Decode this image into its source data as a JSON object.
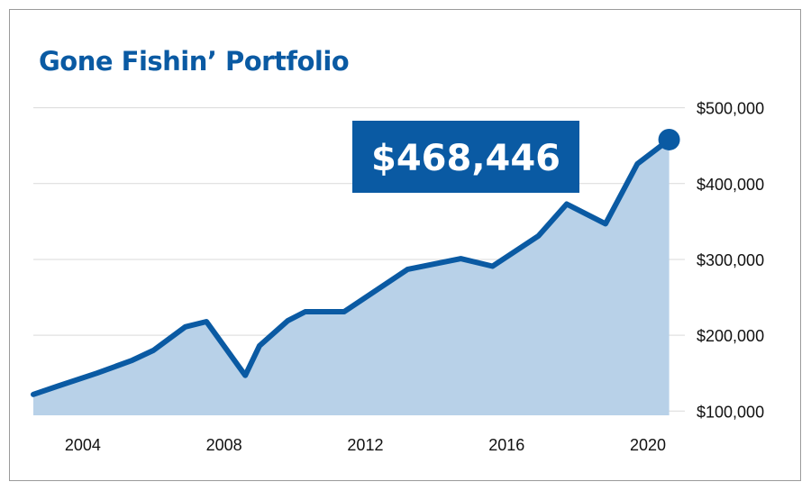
{
  "chart_data": {
    "type": "area",
    "title": "Gone Fishin’ Portfolio",
    "xlabel": "",
    "ylabel": "",
    "xlim": [
      2002.6,
      2021.3
    ],
    "ylim": [
      92000,
      515000
    ],
    "grid": true,
    "y_axis_side": "right",
    "x_ticks": [
      2004,
      2008,
      2012,
      2016,
      2020
    ],
    "x_tick_labels": [
      "2004",
      "2008",
      "2012",
      "2016",
      "2020"
    ],
    "y_ticks": [
      100000,
      200000,
      300000,
      400000,
      500000
    ],
    "y_tick_labels": [
      "$100,000",
      "$200,000",
      "$300,000",
      "$400,000",
      "$500,000"
    ],
    "series": [
      {
        "points": [
          [
            2002.6,
            122000
          ],
          [
            2003.3,
            133000
          ],
          [
            2004.4,
            150000
          ],
          [
            2005.4,
            167000
          ],
          [
            2006.0,
            180000
          ],
          [
            2006.9,
            211000
          ],
          [
            2007.5,
            218000
          ],
          [
            2008.6,
            147000
          ],
          [
            2009.0,
            186000
          ],
          [
            2009.8,
            219000
          ],
          [
            2010.3,
            231000
          ],
          [
            2011.4,
            231000
          ],
          [
            2013.2,
            287000
          ],
          [
            2014.7,
            301000
          ],
          [
            2015.6,
            291000
          ],
          [
            2016.9,
            331000
          ],
          [
            2017.7,
            373000
          ],
          [
            2018.8,
            347000
          ],
          [
            2019.7,
            426000
          ],
          [
            2020.6,
            458000
          ]
        ]
      }
    ],
    "end_marker_value": "$468,446",
    "colors": {
      "line": "#0a5aa3",
      "fill": "#b8d1e8",
      "grid": "#d9d9d9",
      "callout": "#0a5aa3"
    }
  }
}
